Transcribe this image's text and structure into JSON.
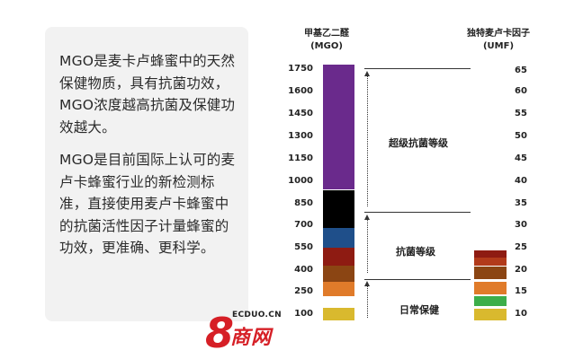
{
  "intro": {
    "para1": "MGO是麦卡卢蜂蜜中的天然保健物质，具有抗菌功效，MGO浓度越高抗菌及保健功效越大。",
    "para2": "MGO是目前国际上认可的麦卢卡蜂蜜行业的新检测标准，直接使用麦卢卡蜂蜜中的抗菌活性因子计量蜂蜜的功效，更准确、更科学。"
  },
  "chart_data": {
    "type": "bar",
    "left_axis": {
      "title_line1": "甲基乙二醛",
      "title_line2": "(MGO)",
      "ticks": [
        "1750",
        "1600",
        "1450",
        "1300",
        "1150",
        "1000",
        "850",
        "700",
        "550",
        "400",
        "250",
        "100"
      ]
    },
    "right_axis": {
      "title_line1": "独特麦卢卡因子",
      "title_line2": "(UMF)",
      "ticks": [
        "65",
        "60",
        "55",
        "50",
        "45",
        "40",
        "35",
        "30",
        "25",
        "20",
        "15",
        "10"
      ]
    },
    "mgo_bar": [
      {
        "from": 100,
        "to": 250,
        "color": "#d9b92e"
      },
      {
        "from": 250,
        "to": 400,
        "color": "#e07b2a"
      },
      {
        "from": 400,
        "to": 550,
        "color": "#8b4513"
      },
      {
        "from": 550,
        "to": 700,
        "color": "#8e1b12"
      },
      {
        "from": 700,
        "to": 850,
        "color": "#1f4f8a"
      },
      {
        "from": 850,
        "to": 1000,
        "color": "#000000"
      },
      {
        "from": 1000,
        "to": 1750,
        "color": "#6a2a8c"
      }
    ],
    "umf_bar": [
      {
        "from": 10,
        "to": 12.5,
        "color": "#d9b92e"
      },
      {
        "from": 12.5,
        "to": 15,
        "color": "#3cae4a"
      },
      {
        "from": 15,
        "to": 17.5,
        "color": "#e07b2a"
      },
      {
        "from": 17.5,
        "to": 20,
        "color": "#8b4513"
      },
      {
        "from": 20,
        "to": 22.5,
        "color": "#b23a1a"
      },
      {
        "from": 22.5,
        "to": 25,
        "color": "#8e1b12"
      }
    ],
    "levels": [
      {
        "label": "超级抗菌等级",
        "from": 850,
        "to": 1750
      },
      {
        "label": "抗菌等级",
        "from": 250,
        "to": 850
      },
      {
        "label": "日常保健",
        "from": 100,
        "to": 250
      }
    ]
  },
  "logo": {
    "mark": "8",
    "url": "ECDUO.CN",
    "name": "商网"
  }
}
